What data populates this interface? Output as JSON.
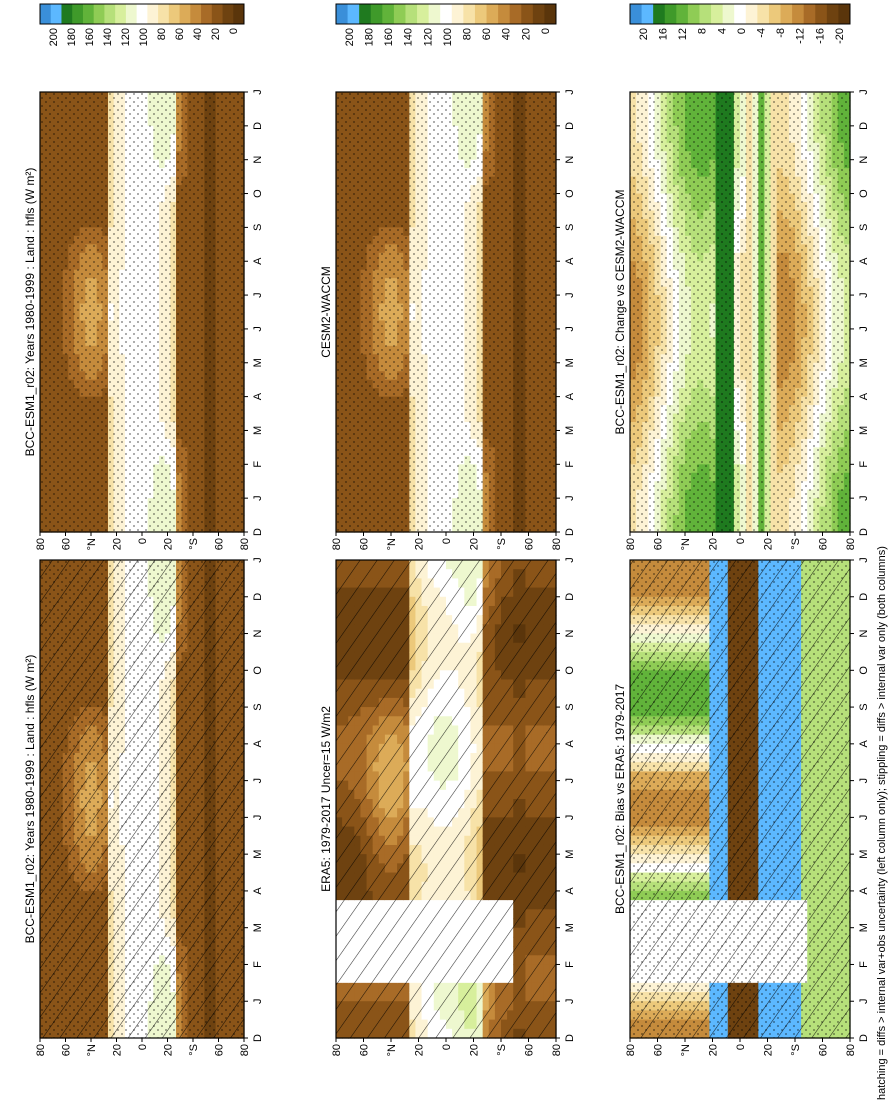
{
  "footer_note": "hatching = diffs > internal var+obs uncertainty (left column only); stippling = diffs > internal var only (both columns)",
  "colors": {
    "abs_scale": [
      "#3a8fd9",
      "#5cb8ff",
      "#1f7a1f",
      "#3f9a2a",
      "#61b33a",
      "#8fcc55",
      "#b6e07a",
      "#d7ef9c",
      "#eef8cf",
      "#ffffff",
      "#fdf3d5",
      "#f7e2a8",
      "#ecc97b",
      "#dcab58",
      "#c58b3c",
      "#a86b27",
      "#8a5418",
      "#6e4210",
      "#5a350b"
    ],
    "diff_scale": [
      "#3a8fd9",
      "#5cb8ff",
      "#1f7a1f",
      "#3f9a2a",
      "#61b33a",
      "#8fcc55",
      "#b6e07a",
      "#d7ef9c",
      "#eef8cf",
      "#ffffff",
      "#fdf3d5",
      "#f7e2a8",
      "#ecc97b",
      "#dcab58",
      "#c58b3c",
      "#a86b27",
      "#8a5418",
      "#6e4210",
      "#5a350b"
    ]
  },
  "chart_data": [
    {
      "id": "p1",
      "type": "heatmap",
      "title": "BCC-ESM1_r02: Years 1980-1999 : Land : hfls (W m²)",
      "x_tick_labels": [
        "D",
        "J",
        "F",
        "M",
        "A",
        "M",
        "J",
        "J",
        "A",
        "S",
        "O",
        "N",
        "D",
        "J"
      ],
      "y_tick_labels": [
        "80",
        "60",
        "°N",
        "20",
        "0",
        "20",
        "°S",
        "60",
        "80"
      ],
      "colorbar_labels": [
        "200",
        "180",
        "160",
        "140",
        "120",
        "100",
        "80",
        "60",
        "40",
        "20",
        "0"
      ],
      "overlays": [
        "hatching",
        "stippling"
      ],
      "missing_months": []
    },
    {
      "id": "p2",
      "type": "heatmap",
      "title": "BCC-ESM1_r02: Years 1980-1999 : Land : hfls (W m²)",
      "x_tick_labels": [
        "D",
        "J",
        "F",
        "M",
        "A",
        "M",
        "J",
        "J",
        "A",
        "S",
        "O",
        "N",
        "D",
        "J"
      ],
      "y_tick_labels": [
        "80",
        "60",
        "°N",
        "20",
        "0",
        "20",
        "°S",
        "60",
        "80"
      ],
      "colorbar_labels": [
        "200",
        "180",
        "160",
        "140",
        "120",
        "100",
        "80",
        "60",
        "40",
        "20",
        "0"
      ],
      "overlays": [
        "stippling"
      ],
      "missing_months": []
    },
    {
      "id": "p3",
      "type": "heatmap",
      "title": "ERA5: 1979-2017 Uncer=15 W/m2",
      "x_tick_labels": [
        "D",
        "J",
        "F",
        "M",
        "A",
        "M",
        "J",
        "J",
        "A",
        "S",
        "O",
        "N",
        "D",
        "J"
      ],
      "y_tick_labels": [
        "80",
        "60",
        "°N",
        "20",
        "0",
        "20",
        "°S",
        "60",
        "80"
      ],
      "colorbar_labels": [
        "200",
        "180",
        "160",
        "140",
        "120",
        "100",
        "80",
        "60",
        "40",
        "20",
        "0"
      ],
      "overlays": [
        "hatching"
      ],
      "missing_months": [
        "F",
        "M"
      ]
    },
    {
      "id": "p4",
      "type": "heatmap",
      "title": "CESM2-WACCM",
      "x_tick_labels": [
        "D",
        "J",
        "F",
        "M",
        "A",
        "M",
        "J",
        "J",
        "A",
        "S",
        "O",
        "N",
        "D",
        "J"
      ],
      "y_tick_labels": [
        "80",
        "60",
        "°N",
        "20",
        "0",
        "20",
        "°S",
        "60",
        "80"
      ],
      "colorbar_labels": [
        "200",
        "180",
        "160",
        "140",
        "120",
        "100",
        "80",
        "60",
        "40",
        "20",
        "0"
      ],
      "overlays": [
        "stippling"
      ],
      "missing_months": []
    },
    {
      "id": "p5",
      "type": "heatmap",
      "title": "BCC-ESM1_r02: Bias vs ERA5: 1979-2017",
      "x_tick_labels": [
        "D",
        "J",
        "F",
        "M",
        "A",
        "M",
        "J",
        "J",
        "A",
        "S",
        "O",
        "N",
        "D",
        "J"
      ],
      "y_tick_labels": [
        "80",
        "60",
        "°N",
        "20",
        "0",
        "20",
        "°S",
        "60",
        "80"
      ],
      "colorbar_labels": [
        "20",
        "16",
        "12",
        "8",
        "4",
        "0",
        "-4",
        "-8",
        "-12",
        "-16",
        "-20"
      ],
      "overlays": [
        "hatching",
        "stippling"
      ],
      "missing_months": [
        "F",
        "M"
      ]
    },
    {
      "id": "p6",
      "type": "heatmap",
      "title": "BCC-ESM1_r02: Change vs CESM2-WACCM",
      "x_tick_labels": [
        "D",
        "J",
        "F",
        "M",
        "A",
        "M",
        "J",
        "J",
        "A",
        "S",
        "O",
        "N",
        "D",
        "J"
      ],
      "y_tick_labels": [
        "80",
        "60",
        "°N",
        "20",
        "0",
        "20",
        "°S",
        "60",
        "80"
      ],
      "colorbar_labels": [
        "20",
        "16",
        "12",
        "8",
        "4",
        "0",
        "-4",
        "-8",
        "-12",
        "-16",
        "-20"
      ],
      "overlays": [
        "stippling"
      ],
      "missing_months": []
    }
  ]
}
